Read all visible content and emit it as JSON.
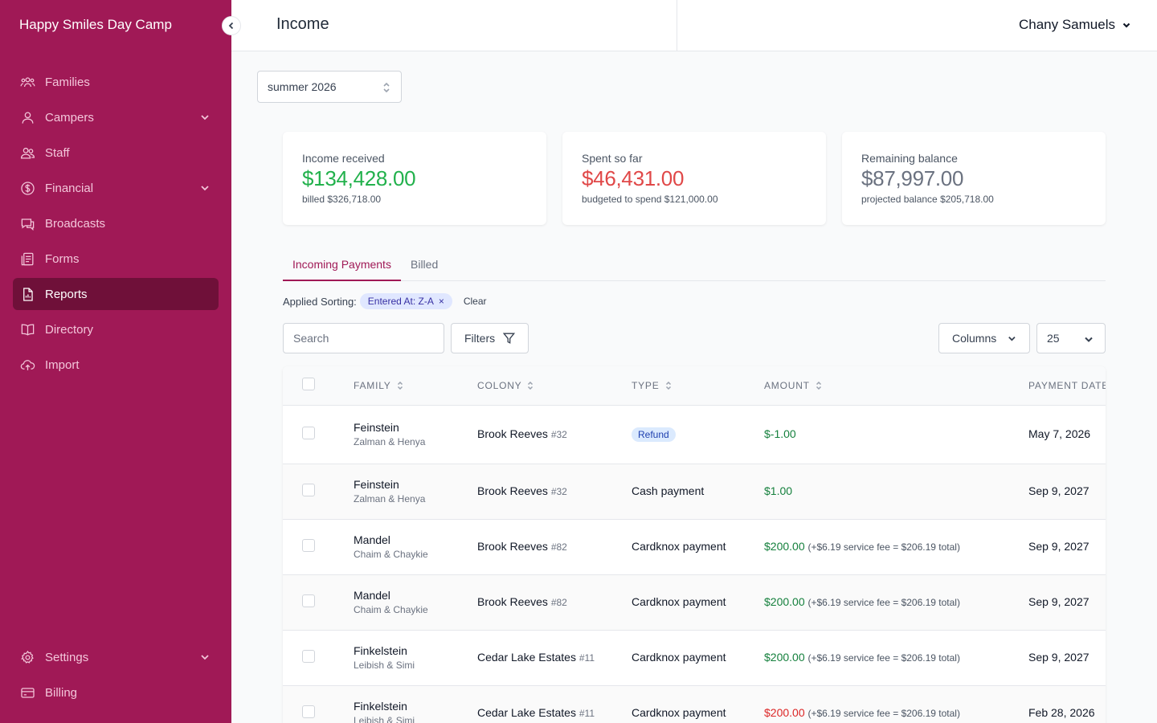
{
  "sidebar": {
    "brand": "Happy Smiles Day Camp",
    "items": [
      {
        "label": "Families",
        "icon": "families-icon"
      },
      {
        "label": "Campers",
        "icon": "user-icon"
      },
      {
        "label": "Staff",
        "icon": "staff-icon"
      },
      {
        "label": "Financial",
        "icon": "dollar-icon"
      },
      {
        "label": "Broadcasts",
        "icon": "chat-icon"
      },
      {
        "label": "Forms",
        "icon": "forms-icon"
      },
      {
        "label": "Reports",
        "icon": "report-icon",
        "active": true
      },
      {
        "label": "Directory",
        "icon": "book-icon"
      },
      {
        "label": "Import",
        "icon": "cloud-upload-icon"
      }
    ],
    "bottom_items": [
      {
        "label": "Settings",
        "icon": "gear-icon"
      },
      {
        "label": "Billing",
        "icon": "credit-card-icon"
      }
    ]
  },
  "header": {
    "title": "Income",
    "user_name": "Chany Samuels"
  },
  "season": {
    "value": "summer 2026"
  },
  "stats": {
    "income": {
      "label": "Income received",
      "value": "$134,428.00",
      "sub": "billed $326,718.00"
    },
    "spent": {
      "label": "Spent so far",
      "value": "$46,431.00",
      "sub": "budgeted to spend $121,000.00"
    },
    "remaining": {
      "label": "Remaining balance",
      "value": "$87,997.00",
      "sub": "projected balance $205,718.00"
    }
  },
  "tabs": [
    "Incoming Payments",
    "Billed"
  ],
  "sorting": {
    "label": "Applied Sorting:",
    "chip": "Entered At: Z-A",
    "chip_remove": "×",
    "clear": "Clear"
  },
  "toolbar": {
    "search_placeholder": "Search",
    "filters": "Filters",
    "columns": "Columns",
    "page_size": "25"
  },
  "table": {
    "headers": [
      "FAMILY",
      "COLONY",
      "TYPE",
      "AMOUNT",
      "PAYMENT DATE"
    ],
    "rows": [
      {
        "family": "Feinstein",
        "members": "Zalman & Henya",
        "colony": "Brook Reeves",
        "unit": "#32",
        "type": "Refund",
        "amount": "$-1.00",
        "fee": "",
        "date": "May 7, 2026"
      },
      {
        "family": "Feinstein",
        "members": "Zalman & Henya",
        "colony": "Brook Reeves",
        "unit": "#32",
        "type": "Cash payment",
        "amount": "$1.00",
        "fee": "",
        "date": "Sep 9, 2027"
      },
      {
        "family": "Mandel",
        "members": "Chaim & Chaykie",
        "colony": "Brook Reeves",
        "unit": "#82",
        "type": "Cardknox payment",
        "amount": "$200.00",
        "fee": "(+$6.19 service fee = $206.19 total)",
        "date": "Sep 9, 2027"
      },
      {
        "family": "Mandel",
        "members": "Chaim & Chaykie",
        "colony": "Brook Reeves",
        "unit": "#82",
        "type": "Cardknox payment",
        "amount": "$200.00",
        "fee": "(+$6.19 service fee = $206.19 total)",
        "date": "Sep 9, 2027"
      },
      {
        "family": "Finkelstein",
        "members": "Leibish & Simi",
        "colony": "Cedar Lake Estates",
        "unit": "#11",
        "type": "Cardknox payment",
        "amount": "$200.00",
        "fee": "(+$6.19 service fee = $206.19 total)",
        "date": "Sep 9, 2027"
      },
      {
        "family": "Finkelstein",
        "members": "Leibish & Simi",
        "colony": "Cedar Lake Estates",
        "unit": "#11",
        "type": "Cardknox payment",
        "amount": "$200.00",
        "fee": "(+$6.19 service fee = $206.19 total)",
        "date": "Feb 28, 2026"
      }
    ]
  },
  "colors": {
    "brand": "#a01956",
    "active_nav": "#6f1039",
    "positive": "#22b14c",
    "negative": "#e04848"
  }
}
